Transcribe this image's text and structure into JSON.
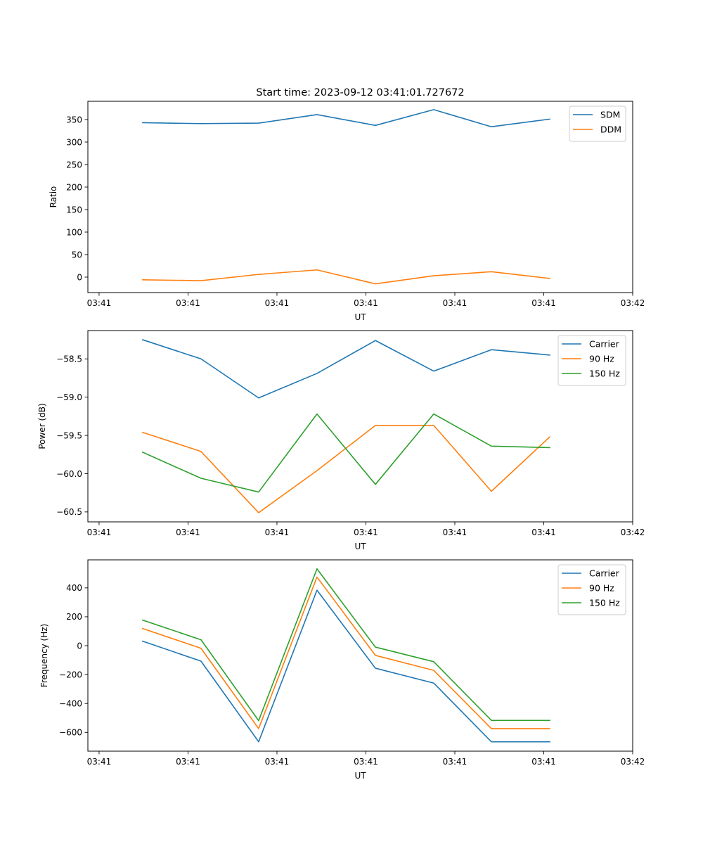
{
  "figure_title": "Start time: 2023-09-12 03:41:01.727672",
  "chart_data": [
    {
      "type": "line",
      "title": "Start time: 2023-09-12 03:41:01.727672",
      "xlabel": "UT",
      "ylabel": "Ratio",
      "x_unit": "seconds after 03:41:00",
      "x": [
        4.9,
        11.46,
        17.94,
        24.5,
        31.07,
        37.63,
        44.11,
        50.67
      ],
      "xlim": [
        -1.26,
        60
      ],
      "xticks": [
        0,
        10,
        20,
        30,
        40,
        50,
        60
      ],
      "xtick_labels": [
        "03:41",
        "03:41",
        "03:41",
        "03:41",
        "03:41",
        "03:41",
        "03:42"
      ],
      "ylim": [
        -34.4,
        390.6
      ],
      "yticks": [
        0,
        50,
        100,
        150,
        200,
        250,
        300,
        350
      ],
      "ytick_labels": [
        "0",
        "50",
        "100",
        "150",
        "200",
        "250",
        "300",
        "350"
      ],
      "grid": false,
      "legend_position": "top-right",
      "series": [
        {
          "name": "SDM",
          "color": "#1f77b4",
          "values": [
            343,
            341,
            342,
            361,
            337,
            372,
            334,
            351
          ]
        },
        {
          "name": "DDM",
          "color": "#ff7f0e",
          "values": [
            -6,
            -8,
            6,
            16,
            -15,
            3,
            12,
            -3
          ]
        }
      ]
    },
    {
      "type": "line",
      "title": "",
      "xlabel": "UT",
      "ylabel": "Power (dB)",
      "x_unit": "seconds after 03:41:00",
      "x": [
        4.9,
        11.46,
        17.94,
        24.5,
        31.07,
        37.63,
        44.11,
        50.67
      ],
      "xlim": [
        -1.26,
        60
      ],
      "xticks": [
        0,
        10,
        20,
        30,
        40,
        50,
        60
      ],
      "xtick_labels": [
        "03:41",
        "03:41",
        "03:41",
        "03:41",
        "03:41",
        "03:41",
        "03:42"
      ],
      "ylim": [
        -60.63,
        -58.13
      ],
      "yticks": [
        -60.5,
        -60.0,
        -59.5,
        -59.0,
        -58.5
      ],
      "ytick_labels": [
        "−60.5",
        "−60.0",
        "−59.5",
        "−59.0",
        "−58.5"
      ],
      "grid": false,
      "legend_position": "top-right",
      "series": [
        {
          "name": "Carrier",
          "color": "#1f77b4",
          "values": [
            -58.25,
            -58.5,
            -59.01,
            -58.69,
            -58.26,
            -58.66,
            -58.38,
            -58.45
          ]
        },
        {
          "name": "90 Hz",
          "color": "#ff7f0e",
          "values": [
            -59.46,
            -59.71,
            -60.51,
            -59.96,
            -59.37,
            -59.37,
            -60.23,
            -59.52
          ]
        },
        {
          "name": "150 Hz",
          "color": "#2ca02c",
          "values": [
            -59.72,
            -60.06,
            -60.24,
            -59.22,
            -60.14,
            -59.22,
            -59.64,
            -59.66
          ]
        }
      ]
    },
    {
      "type": "line",
      "title": "",
      "xlabel": "UT",
      "ylabel": "Frequency (Hz)",
      "x_unit": "seconds after 03:41:00",
      "x": [
        4.9,
        11.46,
        17.94,
        24.5,
        31.07,
        37.63,
        44.11,
        50.67
      ],
      "xlim": [
        -1.26,
        60
      ],
      "xticks": [
        0,
        10,
        20,
        30,
        40,
        50,
        60
      ],
      "xtick_labels": [
        "03:41",
        "03:41",
        "03:41",
        "03:41",
        "03:41",
        "03:41",
        "03:42"
      ],
      "ylim": [
        -730,
        594
      ],
      "yticks": [
        -600,
        -400,
        -200,
        0,
        200,
        400
      ],
      "ytick_labels": [
        "−600",
        "−400",
        "−200",
        "0",
        "200",
        "400"
      ],
      "grid": false,
      "legend_position": "top-right",
      "series": [
        {
          "name": "Carrier",
          "color": "#1f77b4",
          "values": [
            31,
            -107,
            -665,
            384,
            -156,
            -259,
            -665,
            -665
          ]
        },
        {
          "name": "90 Hz",
          "color": "#ff7f0e",
          "values": [
            119,
            -18,
            -574,
            475,
            -67,
            -171,
            -574,
            -574
          ]
        },
        {
          "name": "150 Hz",
          "color": "#2ca02c",
          "values": [
            177,
            41,
            -519,
            532,
            -10,
            -111,
            -517,
            -517
          ]
        }
      ]
    }
  ]
}
